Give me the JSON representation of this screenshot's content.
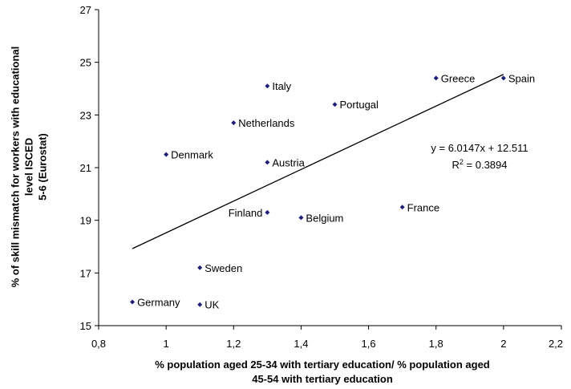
{
  "chart_data": {
    "type": "scatter",
    "xlabel_lines": [
      "% population aged 25-34 with tertiary education/ % population aged",
      "45-54 with tertiary education"
    ],
    "ylabel_lines": [
      "% of skill mismatch for workers with educational",
      "level ISCED",
      "5-6 (Eurostat)"
    ],
    "xlim": [
      0.8,
      2.2
    ],
    "ylim": [
      15,
      27
    ],
    "x_ticks": [
      0.8,
      1.0,
      1.2,
      1.4,
      1.6,
      1.8,
      2.0,
      2.2
    ],
    "x_tick_labels": [
      "0,8",
      "1",
      "1,2",
      "1,4",
      "1,6",
      "1,8",
      "2",
      "2,2"
    ],
    "y_ticks": [
      15,
      17,
      19,
      21,
      23,
      25,
      27
    ],
    "y_tick_labels": [
      "15",
      "17",
      "19",
      "21",
      "23",
      "25",
      "27"
    ],
    "grid": false,
    "marker_color": "#1f1f7a",
    "points": [
      {
        "label": "Italy",
        "x": 1.3,
        "y": 24.1,
        "label_pos": "right"
      },
      {
        "label": "Greece",
        "x": 1.8,
        "y": 24.4,
        "label_pos": "right"
      },
      {
        "label": "Spain",
        "x": 2.0,
        "y": 24.4,
        "label_pos": "right"
      },
      {
        "label": "Portugal",
        "x": 1.5,
        "y": 23.4,
        "label_pos": "right"
      },
      {
        "label": "Netherlands",
        "x": 1.2,
        "y": 22.7,
        "label_pos": "right"
      },
      {
        "label": "Denmark",
        "x": 1.0,
        "y": 21.5,
        "label_pos": "right"
      },
      {
        "label": "Austria",
        "x": 1.3,
        "y": 21.2,
        "label_pos": "right"
      },
      {
        "label": "Finland",
        "x": 1.3,
        "y": 19.3,
        "label_pos": "left"
      },
      {
        "label": "Belgium",
        "x": 1.4,
        "y": 19.1,
        "label_pos": "right"
      },
      {
        "label": "France",
        "x": 1.7,
        "y": 19.5,
        "label_pos": "right"
      },
      {
        "label": "Sweden",
        "x": 1.1,
        "y": 17.2,
        "label_pos": "right"
      },
      {
        "label": "Germany",
        "x": 0.9,
        "y": 15.9,
        "label_pos": "right"
      },
      {
        "label": "UK",
        "x": 1.1,
        "y": 15.8,
        "label_pos": "right"
      }
    ],
    "trendline": {
      "slope": 6.0147,
      "intercept": 12.511,
      "x_range": [
        0.9,
        2.0
      ]
    },
    "equation_text": "y = 6.0147x + 12.511",
    "r2_text_prefix": "R",
    "r2_text_sup": "2",
    "r2_text_value": " = 0.3894"
  }
}
